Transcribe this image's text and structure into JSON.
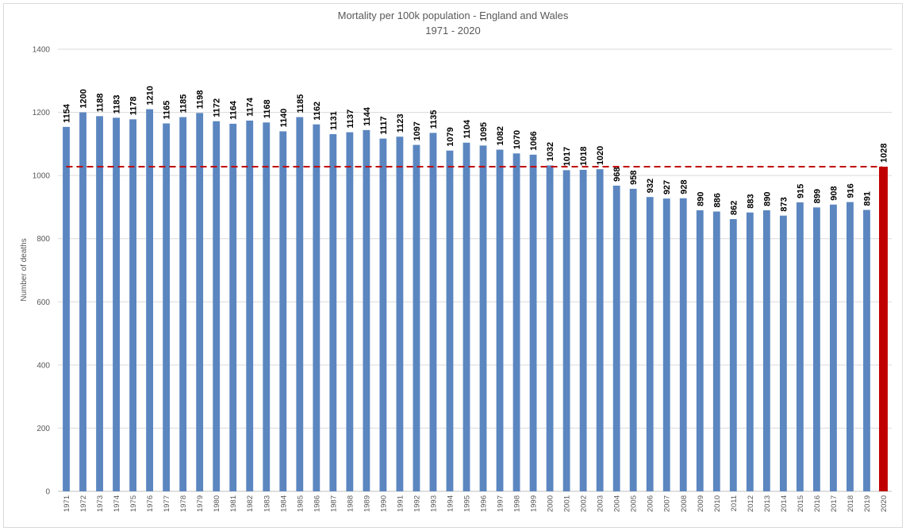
{
  "chart_data": {
    "type": "bar",
    "title": "Mortality per 100k population - England and Wales",
    "subtitle": "1971 - 2020",
    "xlabel": "",
    "ylabel": "Number of deaths",
    "ylim": [
      0,
      1400
    ],
    "yticks": [
      0,
      200,
      400,
      600,
      800,
      1000,
      1200,
      1400
    ],
    "grid": true,
    "legend": "none",
    "categories": [
      "1971",
      "1972",
      "1973",
      "1974",
      "1975",
      "1976",
      "1977",
      "1978",
      "1979",
      "1980",
      "1981",
      "1982",
      "1983",
      "1984",
      "1985",
      "1986",
      "1987",
      "1988",
      "1989",
      "1990",
      "1991",
      "1992",
      "1993",
      "1994",
      "1995",
      "1996",
      "1997",
      "1998",
      "1999",
      "2000",
      "2001",
      "2002",
      "2003",
      "2004",
      "2005",
      "2006",
      "2007",
      "2008",
      "2009",
      "2010",
      "2011",
      "2012",
      "2013",
      "2014",
      "2015",
      "2016",
      "2017",
      "2018",
      "2019",
      "2020"
    ],
    "values": [
      1154,
      1200,
      1188,
      1183,
      1178,
      1210,
      1165,
      1185,
      1198,
      1172,
      1164,
      1174,
      1168,
      1140,
      1185,
      1162,
      1131,
      1137,
      1144,
      1117,
      1123,
      1097,
      1135,
      1079,
      1104,
      1095,
      1082,
      1070,
      1066,
      1032,
      1017,
      1018,
      1020,
      968,
      958,
      932,
      927,
      928,
      890,
      886,
      862,
      883,
      890,
      873,
      915,
      899,
      908,
      916,
      891,
      1028
    ],
    "highlight_category": "2020",
    "reference_line": 1028,
    "colors": {
      "bar": "#5b86c0",
      "highlight": "#c00000",
      "reference_line": "#c00000",
      "grid": "#d9d9d9",
      "text": "#595959"
    }
  }
}
